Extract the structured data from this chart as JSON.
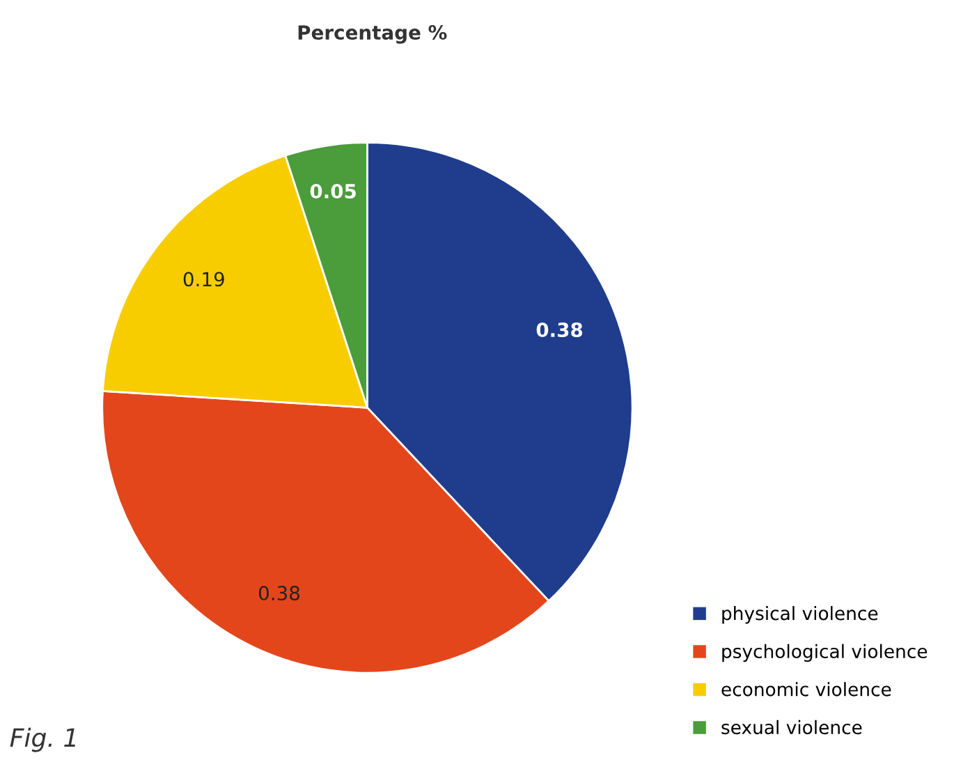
{
  "chart_data": {
    "type": "pie",
    "title": "Percentage %",
    "categories": [
      "physical violence",
      "psychological violence",
      "economic violence",
      "sexual violence"
    ],
    "values": [
      0.38,
      0.38,
      0.19,
      0.05
    ],
    "colors": [
      "#1f3d8c",
      "#e4461c",
      "#f8cd00",
      "#4b9c3b"
    ],
    "data_labels": true,
    "legend": "bottom right",
    "annotations": [
      "Fig. 1"
    ]
  }
}
